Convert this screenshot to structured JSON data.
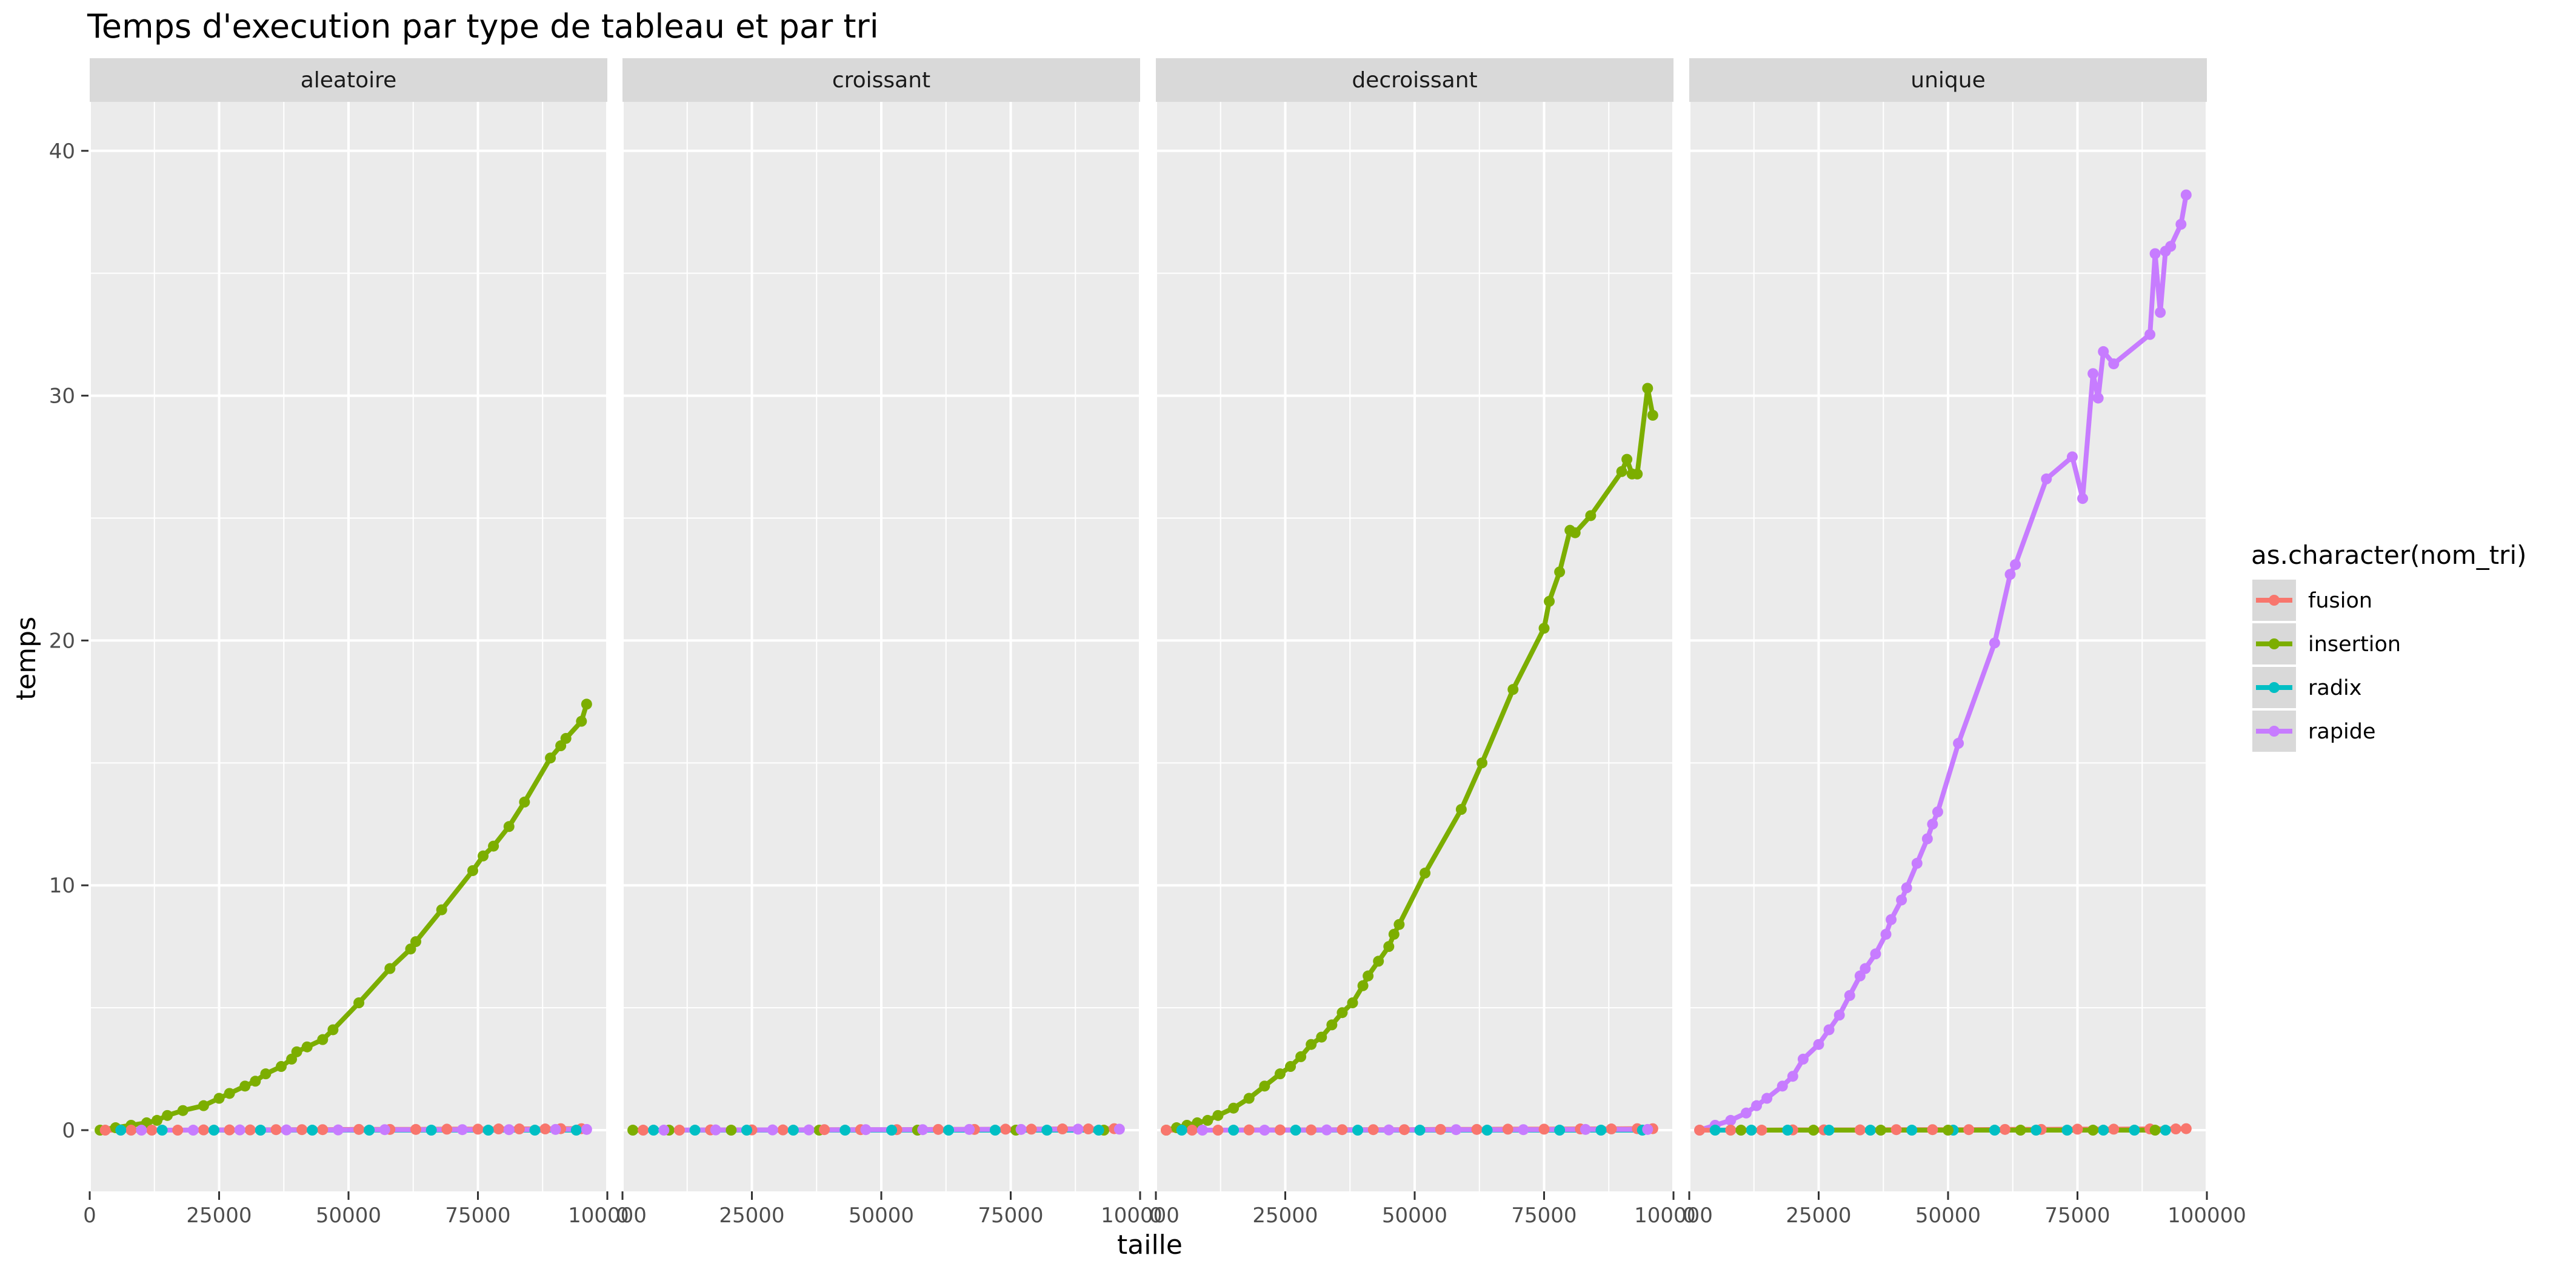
{
  "chart_data": {
    "type": "scatter",
    "title": "Temps d'execution par type de tableau et par tri",
    "xlabel": "taille",
    "ylabel": "temps",
    "xlim": [
      0,
      100000
    ],
    "ylim": [
      -2.5,
      42
    ],
    "x_ticks": [
      0,
      25000,
      50000,
      75000,
      100000
    ],
    "x_tick_labels": [
      "0",
      "25000",
      "50000",
      "75000",
      "100000"
    ],
    "y_ticks": [
      0,
      10,
      20,
      30,
      40
    ],
    "y_tick_labels": [
      "0",
      "10",
      "20",
      "30",
      "40"
    ],
    "grid": true,
    "legend": {
      "title": "as.character(nom_tri)",
      "position": "right",
      "entries": [
        {
          "name": "fusion",
          "color": "#F8766D"
        },
        {
          "name": "insertion",
          "color": "#7CAE00"
        },
        {
          "name": "radix",
          "color": "#00BFC4"
        },
        {
          "name": "rapide",
          "color": "#C77CFF"
        }
      ]
    },
    "facets": [
      {
        "label": "aleatoire",
        "series": [
          {
            "name": "insertion",
            "color": "#7CAE00",
            "x": [
              2000,
              5000,
              8000,
              11000,
              13000,
              15000,
              18000,
              22000,
              25000,
              27000,
              30000,
              32000,
              34000,
              37000,
              39000,
              40000,
              42000,
              45000,
              47000,
              52000,
              58000,
              62000,
              63000,
              68000,
              74000,
              76000,
              78000,
              81000,
              84000,
              89000,
              91000,
              92000,
              95000,
              96000
            ],
            "y": [
              0.0,
              0.1,
              0.2,
              0.3,
              0.4,
              0.6,
              0.8,
              1.0,
              1.3,
              1.5,
              1.8,
              2.0,
              2.3,
              2.6,
              2.9,
              3.2,
              3.4,
              3.7,
              4.1,
              5.2,
              6.6,
              7.4,
              7.7,
              9.0,
              10.6,
              11.2,
              11.6,
              12.4,
              13.4,
              15.2,
              15.7,
              16.0,
              16.7,
              17.4
            ]
          },
          {
            "name": "fusion",
            "color": "#F8766D",
            "x": [
              3000,
              8000,
              12000,
              17000,
              22000,
              27000,
              31000,
              36000,
              41000,
              45000,
              52000,
              58000,
              63000,
              69000,
              75000,
              79000,
              83000,
              88000,
              91000,
              95000
            ],
            "y": [
              0.0,
              0.0,
              0.0,
              0.0,
              0.01,
              0.01,
              0.01,
              0.02,
              0.02,
              0.02,
              0.03,
              0.03,
              0.03,
              0.04,
              0.04,
              0.05,
              0.05,
              0.05,
              0.06,
              0.06
            ]
          },
          {
            "name": "radix",
            "color": "#00BFC4",
            "x": [
              6000,
              14000,
              24000,
              33000,
              43000,
              54000,
              66000,
              77000,
              86000,
              94000
            ],
            "y": [
              0.0,
              0.0,
              0.0,
              0.0,
              0.0,
              0.0,
              0.0,
              0.0,
              0.0,
              0.0
            ]
          },
          {
            "name": "rapide",
            "color": "#C77CFF",
            "x": [
              10000,
              20000,
              29000,
              38000,
              48000,
              57000,
              72000,
              81000,
              90000,
              96000
            ],
            "y": [
              0.0,
              0.0,
              0.01,
              0.01,
              0.01,
              0.02,
              0.02,
              0.02,
              0.03,
              0.03
            ]
          }
        ]
      },
      {
        "label": "croissant",
        "series": [
          {
            "name": "insertion",
            "color": "#7CAE00",
            "x": [
              2000,
              9000,
              21000,
              38000,
              57000,
              76000,
              93000
            ],
            "y": [
              0.0,
              0.0,
              0.0,
              0.0,
              0.0,
              0.0,
              0.0
            ]
          },
          {
            "name": "fusion",
            "color": "#F8766D",
            "x": [
              4000,
              11000,
              17000,
              25000,
              31000,
              39000,
              46000,
              53000,
              61000,
              68000,
              74000,
              79000,
              85000,
              90000,
              95000
            ],
            "y": [
              0.0,
              0.0,
              0.01,
              0.01,
              0.01,
              0.02,
              0.02,
              0.02,
              0.03,
              0.03,
              0.04,
              0.04,
              0.05,
              0.05,
              0.06
            ]
          },
          {
            "name": "radix",
            "color": "#00BFC4",
            "x": [
              6000,
              14000,
              24000,
              33000,
              43000,
              52000,
              63000,
              72000,
              82000,
              92000
            ],
            "y": [
              0.0,
              0.0,
              0.0,
              0.0,
              0.0,
              0.0,
              0.0,
              0.0,
              0.0,
              0.0
            ]
          },
          {
            "name": "rapide",
            "color": "#C77CFF",
            "x": [
              8000,
              18000,
              29000,
              36000,
              47000,
              58000,
              67000,
              77000,
              88000,
              96000
            ],
            "y": [
              0.0,
              0.01,
              0.01,
              0.01,
              0.02,
              0.02,
              0.03,
              0.03,
              0.04,
              0.04
            ]
          }
        ]
      },
      {
        "label": "decroissant",
        "series": [
          {
            "name": "insertion",
            "color": "#7CAE00",
            "x": [
              2000,
              4000,
              6000,
              8000,
              10000,
              12000,
              15000,
              18000,
              21000,
              24000,
              26000,
              28000,
              30000,
              32000,
              34000,
              36000,
              38000,
              40000,
              41000,
              43000,
              45000,
              46000,
              47000,
              52000,
              59000,
              63000,
              69000,
              75000,
              76000,
              78000,
              80000,
              81000,
              84000,
              90000,
              91000,
              92000,
              93000,
              95000,
              96000
            ],
            "y": [
              0.0,
              0.1,
              0.2,
              0.3,
              0.4,
              0.6,
              0.9,
              1.3,
              1.8,
              2.3,
              2.6,
              3.0,
              3.5,
              3.8,
              4.3,
              4.8,
              5.2,
              5.9,
              6.3,
              6.9,
              7.5,
              8.0,
              8.4,
              10.5,
              13.1,
              15.0,
              18.0,
              20.5,
              21.6,
              22.8,
              24.5,
              24.4,
              25.1,
              26.9,
              27.4,
              26.8,
              26.8,
              30.3,
              29.2
            ]
          },
          {
            "name": "fusion",
            "color": "#F8766D",
            "x": [
              2000,
              7000,
              12000,
              18000,
              24000,
              30000,
              36000,
              42000,
              48000,
              55000,
              62000,
              68000,
              75000,
              82000,
              88000,
              93000,
              96000
            ],
            "y": [
              0.0,
              0.0,
              0.0,
              0.01,
              0.01,
              0.01,
              0.02,
              0.02,
              0.02,
              0.03,
              0.03,
              0.04,
              0.04,
              0.05,
              0.05,
              0.06,
              0.06
            ]
          },
          {
            "name": "radix",
            "color": "#00BFC4",
            "x": [
              5000,
              15000,
              27000,
              39000,
              51000,
              64000,
              78000,
              86000,
              94000
            ],
            "y": [
              0.0,
              0.0,
              0.0,
              0.0,
              0.0,
              0.0,
              0.0,
              0.0,
              0.0
            ]
          },
          {
            "name": "rapide",
            "color": "#C77CFF",
            "x": [
              9000,
              21000,
              33000,
              45000,
              58000,
              71000,
              83000,
              95000
            ],
            "y": [
              0.0,
              0.0,
              0.01,
              0.01,
              0.02,
              0.02,
              0.03,
              0.03
            ]
          }
        ]
      },
      {
        "label": "unique",
        "series": [
          {
            "name": "rapide",
            "color": "#C77CFF",
            "x": [
              2000,
              5000,
              8000,
              11000,
              13000,
              15000,
              18000,
              20000,
              22000,
              25000,
              27000,
              29000,
              31000,
              33000,
              34000,
              36000,
              38000,
              39000,
              41000,
              42000,
              44000,
              46000,
              47000,
              48000,
              52000,
              59000,
              62000,
              63000,
              69000,
              74000,
              76000,
              78000,
              79000,
              80000,
              82000,
              89000,
              90000,
              91000,
              92000,
              93000,
              95000,
              96000
            ],
            "y": [
              0.0,
              0.2,
              0.4,
              0.7,
              1.0,
              1.3,
              1.8,
              2.2,
              2.9,
              3.5,
              4.1,
              4.7,
              5.5,
              6.3,
              6.6,
              7.2,
              8.0,
              8.6,
              9.4,
              9.9,
              10.9,
              11.9,
              12.5,
              13.0,
              15.8,
              19.9,
              22.7,
              23.1,
              26.6,
              27.5,
              25.8,
              30.9,
              29.9,
              31.8,
              31.3,
              32.5,
              35.8,
              33.4,
              35.9,
              36.1,
              37.0,
              38.2
            ]
          },
          {
            "name": "fusion",
            "color": "#F8766D",
            "x": [
              2000,
              8000,
              14000,
              20000,
              26000,
              33000,
              40000,
              47000,
              54000,
              61000,
              68000,
              75000,
              82000,
              89000,
              94000,
              96000
            ],
            "y": [
              0.0,
              0.0,
              0.0,
              0.01,
              0.01,
              0.01,
              0.02,
              0.02,
              0.02,
              0.03,
              0.03,
              0.04,
              0.04,
              0.05,
              0.05,
              0.06
            ]
          },
          {
            "name": "radix",
            "color": "#00BFC4",
            "x": [
              5000,
              12000,
              19000,
              27000,
              35000,
              43000,
              51000,
              59000,
              67000,
              73000,
              80000,
              86000,
              92000
            ],
            "y": [
              0.0,
              0.0,
              0.0,
              0.0,
              0.0,
              0.0,
              0.0,
              0.0,
              0.0,
              0.0,
              0.0,
              0.0,
              0.0
            ]
          },
          {
            "name": "insertion",
            "color": "#7CAE00",
            "x": [
              10000,
              24000,
              37000,
              50000,
              64000,
              78000,
              90000
            ],
            "y": [
              0.0,
              0.0,
              0.0,
              0.0,
              0.0,
              0.0,
              0.0
            ]
          }
        ]
      }
    ]
  }
}
